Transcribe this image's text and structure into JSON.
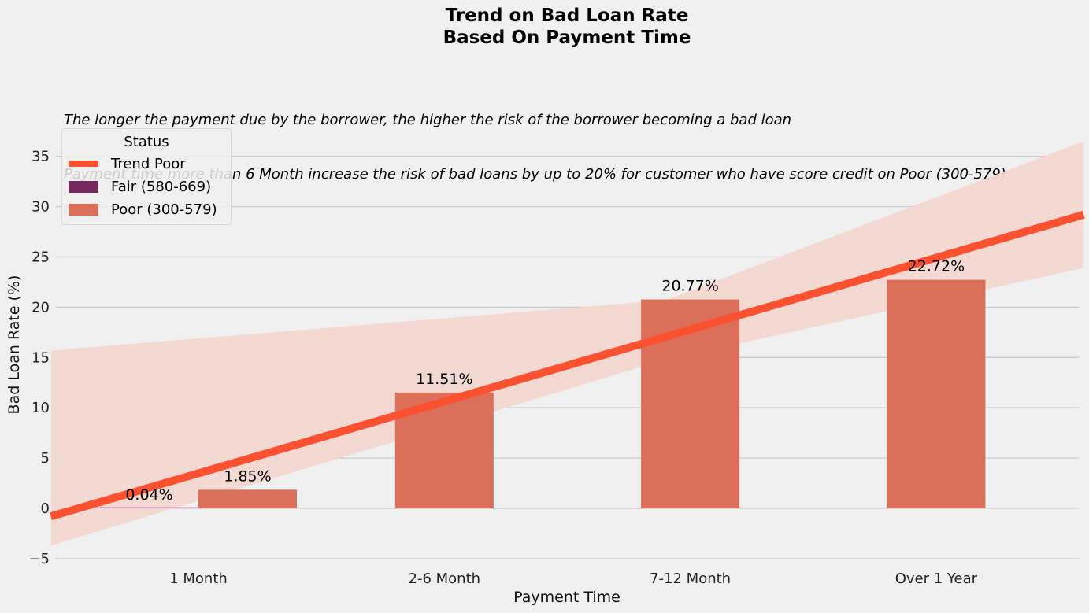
{
  "title_line1": "Trend on Bad Loan Rate",
  "title_line2": "Based On Payment Time",
  "subtitle_line1": "The longer the payment due by the borrower, the higher the risk of the borrower becoming a bad loan",
  "subtitle_line2": "Payment time more than 6 Month increase the risk of bad loans by up to 20% for customer who have score credit on Poor (300-579)",
  "legend": {
    "title": "Status",
    "items": [
      "Trend Poor",
      "Fair (580-669)",
      "Poor (300-579)"
    ]
  },
  "colors": {
    "fair": "#76295c",
    "poor": "#dc6f5a",
    "trend": "#fc5130",
    "band": "#f3d7d1"
  },
  "chart_data": {
    "type": "bar",
    "title": "Trend on Bad Loan Rate Based On Payment Time",
    "xlabel": "Payment Time",
    "ylabel": "Bad Loan Rate (%)",
    "categories": [
      "1 Month",
      "2-6 Month",
      "7-12 Month",
      "Over 1 Year"
    ],
    "series": [
      {
        "name": "Fair (580-669)",
        "values": [
          0.04,
          null,
          null,
          null
        ],
        "labels": [
          "0.04%",
          null,
          null,
          null
        ]
      },
      {
        "name": "Poor (300-579)",
        "values": [
          1.85,
          11.51,
          20.77,
          22.72
        ],
        "labels": [
          "1.85%",
          "11.51%",
          "20.77%",
          "22.72%"
        ]
      }
    ],
    "trend": {
      "name": "Trend Poor",
      "x_start": -0.6,
      "x_end": 3.6,
      "y_start": -0.8,
      "y_end": 29.2,
      "band_upper": [
        [
          -0.6,
          15.7
        ],
        [
          1.9,
          20.7
        ],
        [
          3.6,
          36.5
        ]
      ],
      "band_lower": [
        [
          -0.6,
          -3.7
        ],
        [
          1.9,
          14.8
        ],
        [
          3.6,
          23.9
        ]
      ]
    },
    "yticks": [
      -5,
      0,
      5,
      10,
      15,
      20,
      25,
      30,
      35
    ],
    "ylim": [
      -5,
      37
    ],
    "grid": true,
    "legend_position": "top-left"
  }
}
